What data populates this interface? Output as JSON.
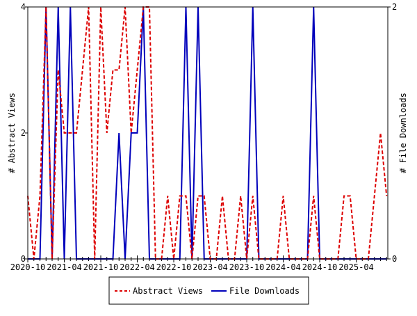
{
  "chart_data": {
    "type": "line",
    "title": "",
    "xlabel": "",
    "ylabel": "# Abstract Views",
    "y2label": "# File Downloads",
    "ylim": [
      0,
      4
    ],
    "y2lim": [
      0,
      2
    ],
    "yticks": [
      "0",
      "2",
      "4"
    ],
    "y2ticks": [
      "0",
      "2"
    ],
    "xtick_labels": [
      "2020-10",
      "2021-04",
      "2021-10",
      "2022-04",
      "2022-10",
      "2023-04",
      "2023-10",
      "2024-04",
      "2024-10",
      "2025-04"
    ],
    "start_month": "2020-10",
    "grid": false,
    "legend_position": "bottom",
    "series": [
      {
        "name": "Abstract Views",
        "axis": "left",
        "color": "#dd0000",
        "dash": "dashed",
        "values": [
          1,
          0,
          1,
          4,
          0,
          3,
          2,
          2,
          2,
          3,
          4,
          0,
          4,
          2,
          3,
          3,
          4,
          2,
          3,
          4,
          4,
          0,
          0,
          1,
          0,
          1,
          1,
          0,
          1,
          1,
          0,
          0,
          1,
          0,
          0,
          1,
          0,
          1,
          0,
          0,
          0,
          0,
          1,
          0,
          0,
          0,
          0,
          1,
          0,
          0,
          0,
          0,
          1,
          1,
          0,
          0,
          0,
          1,
          2,
          1
        ]
      },
      {
        "name": "File Downloads",
        "axis": "right",
        "color": "#0000bb",
        "dash": "solid",
        "values": [
          0,
          0,
          0,
          2,
          0,
          2,
          0,
          2,
          0,
          0,
          0,
          0,
          0,
          0,
          0,
          1,
          0,
          1,
          1,
          2,
          0,
          0,
          0,
          0,
          0,
          0,
          2,
          0,
          2,
          0,
          0,
          0,
          0,
          0,
          0,
          0,
          0,
          2,
          0,
          0,
          0,
          0,
          0,
          0,
          0,
          0,
          0,
          2,
          0,
          0,
          0,
          0,
          0,
          0,
          0,
          0,
          0,
          0,
          0,
          0
        ]
      }
    ]
  }
}
